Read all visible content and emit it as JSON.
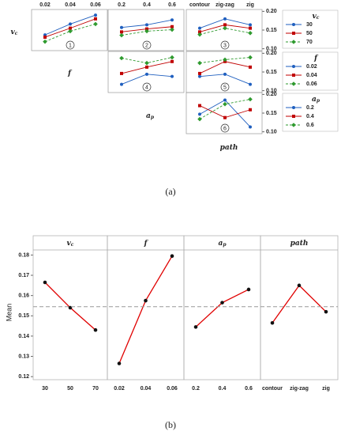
{
  "chart_data": [
    {
      "type": "interaction",
      "caption": "(a)",
      "ylim": [
        0.095,
        0.205
      ],
      "yticks": [
        {
          "value": 0.1,
          "label": "0.10"
        },
        0.15,
        {
          "value": 0.2,
          "label": "0.20"
        }
      ],
      "colors": [
        "#1f5fbf",
        "#c00000",
        "#2e9a2e"
      ],
      "factors": [
        {
          "name": "v",
          "sub": "c",
          "levels": [
            "30",
            "50",
            "70"
          ]
        },
        {
          "name": "f",
          "levels": [
            "0.02",
            "0.04",
            "0.06"
          ]
        },
        {
          "name": "a",
          "sub": "p",
          "levels": [
            "0.2",
            "0.4",
            "0.6"
          ]
        },
        {
          "name": "path",
          "levels": [
            "contour",
            "zig-zag",
            "zig"
          ]
        }
      ],
      "panels": [
        {
          "label": "1",
          "series_factor": 0,
          "x_factor": 1,
          "values": [
            [
              0.137,
              0.166,
              0.19
            ],
            [
              0.131,
              0.155,
              0.18
            ],
            [
              0.119,
              0.147,
              0.166
            ]
          ]
        },
        {
          "label": "2",
          "series_factor": 0,
          "x_factor": 2,
          "values": [
            [
              0.157,
              0.164,
              0.177
            ],
            [
              0.145,
              0.153,
              0.159
            ],
            [
              0.136,
              0.147,
              0.151
            ]
          ]
        },
        {
          "label": "3",
          "series_factor": 0,
          "x_factor": 3,
          "values": [
            [
              0.155,
              0.18,
              0.164
            ],
            [
              0.145,
              0.164,
              0.155
            ],
            [
              0.138,
              0.155,
              0.142
            ]
          ]
        },
        {
          "label": "4",
          "series_factor": 1,
          "x_factor": 2,
          "values": [
            [
              0.117,
              0.144,
              0.138
            ],
            [
              0.146,
              0.163,
              0.178
            ],
            [
              0.187,
              0.174,
              0.189
            ]
          ]
        },
        {
          "label": "5",
          "series_factor": 1,
          "x_factor": 3,
          "values": [
            [
              0.138,
              0.144,
              0.117
            ],
            [
              0.146,
              0.178,
              0.163
            ],
            [
              0.174,
              0.183,
              0.189
            ]
          ]
        },
        {
          "label": "6",
          "series_factor": 2,
          "x_factor": 3,
          "values": [
            [
              0.147,
              0.185,
              0.113
            ],
            [
              0.17,
              0.138,
              0.159
            ],
            [
              0.134,
              0.174,
              0.187
            ]
          ]
        }
      ]
    },
    {
      "type": "main-effects",
      "caption": "(b)",
      "ylabel": "Mean",
      "ylim": [
        0.1185,
        0.1825
      ],
      "yticks": [
        0.12,
        0.13,
        0.14,
        0.15,
        0.16,
        0.17,
        0.18
      ],
      "reference": 0.1545,
      "color": "#e00000",
      "panels": [
        {
          "name": "v",
          "sub": "c",
          "categories": [
            "30",
            "50",
            "70"
          ],
          "values": [
            0.1665,
            0.154,
            0.143
          ]
        },
        {
          "name": "f",
          "categories": [
            "0.02",
            "0.04",
            "0.06"
          ],
          "values": [
            0.1265,
            0.1575,
            0.1795
          ]
        },
        {
          "name": "a",
          "sub": "p",
          "categories": [
            "0.2",
            "0.4",
            "0.6"
          ],
          "values": [
            0.1445,
            0.1565,
            0.163
          ]
        },
        {
          "name": "path",
          "categories": [
            "contour",
            "zig-zag",
            "zig"
          ],
          "values": [
            0.1465,
            0.165,
            0.152
          ]
        }
      ]
    }
  ]
}
